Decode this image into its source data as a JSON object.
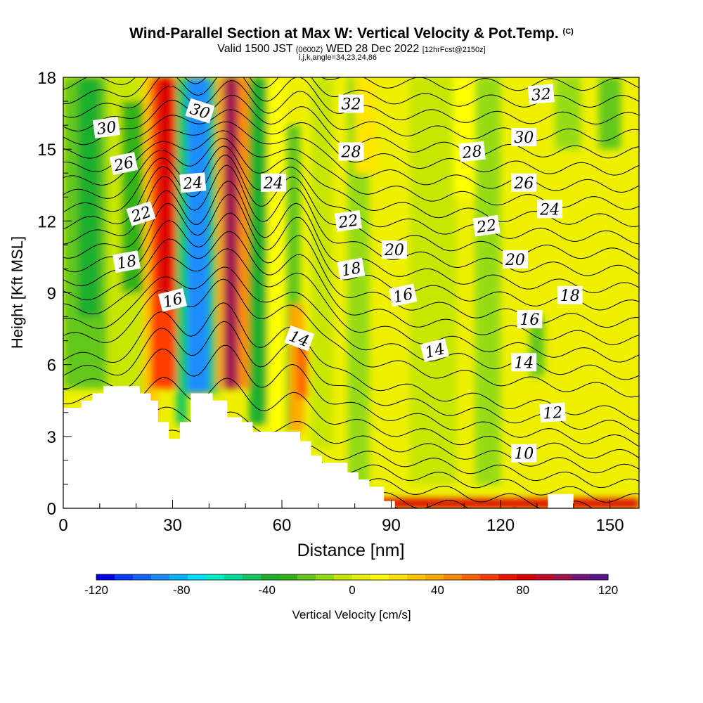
{
  "title": {
    "main": "Wind-Parallel Section at Max W: Vertical Velocity & Pot.Temp.",
    "copyright": "(C)",
    "valid": "Valid 1500 JST",
    "valid_utc": "(0600Z)",
    "date": "WED 28 Dec 2022",
    "forecast": "[12hrFcst@2150z]",
    "meta": "i,j,k,angle=34,23,24,86"
  },
  "chart_data": {
    "type": "heatmap",
    "xlabel": "Distance [nm]",
    "ylabel": "Height [Kft MSL]",
    "xlim": [
      0,
      158
    ],
    "ylim": [
      0,
      18
    ],
    "xticks": [
      0,
      30,
      60,
      90,
      120,
      150
    ],
    "yticks": [
      0,
      3,
      6,
      9,
      12,
      15,
      18
    ],
    "colorbar": {
      "label": "Vertical Velocity [cm/s]",
      "range": [
        -120,
        120
      ],
      "ticks": [
        -120,
        -80,
        -40,
        0,
        40,
        80,
        120
      ],
      "colors": [
        "#0000f0",
        "#0a3cff",
        "#1464ff",
        "#1e8cff",
        "#00b4ff",
        "#00e0ff",
        "#00f0c8",
        "#00dc96",
        "#14c864",
        "#1eaf2d",
        "#32b414",
        "#64c81e",
        "#96dc14",
        "#c8e600",
        "#e6f000",
        "#ffff00",
        "#ffe600",
        "#ffc800",
        "#ffaa00",
        "#ff8c00",
        "#ff6400",
        "#ff3c00",
        "#f01400",
        "#dc0000",
        "#c80a28",
        "#a01450",
        "#78147d",
        "#5a148c"
      ]
    },
    "terrain": [
      [
        0,
        4.2
      ],
      [
        5,
        4.2
      ],
      [
        5,
        4.5
      ],
      [
        8,
        4.5
      ],
      [
        8,
        4.8
      ],
      [
        11,
        4.8
      ],
      [
        11,
        5.1
      ],
      [
        21,
        5.1
      ],
      [
        21,
        4.8
      ],
      [
        24,
        4.8
      ],
      [
        24,
        4.5
      ],
      [
        26,
        4.5
      ],
      [
        26,
        3.6
      ],
      [
        29,
        3.6
      ],
      [
        29,
        2.9
      ],
      [
        32,
        2.9
      ],
      [
        32,
        3.6
      ],
      [
        35,
        3.6
      ],
      [
        35,
        4.8
      ],
      [
        41,
        4.8
      ],
      [
        41,
        4.5
      ],
      [
        45,
        4.5
      ],
      [
        45,
        3.8
      ],
      [
        49,
        3.8
      ],
      [
        49,
        3.6
      ],
      [
        52,
        3.6
      ],
      [
        52,
        3.2
      ],
      [
        65,
        3.2
      ],
      [
        65,
        2.8
      ],
      [
        68,
        2.8
      ],
      [
        68,
        2.2
      ],
      [
        71,
        2.2
      ],
      [
        71,
        1.9
      ],
      [
        78,
        1.9
      ],
      [
        78,
        1.5
      ],
      [
        81,
        1.5
      ],
      [
        81,
        1.2
      ],
      [
        84,
        1.2
      ],
      [
        84,
        0.9
      ],
      [
        88,
        0.9
      ],
      [
        88,
        0.3
      ],
      [
        91,
        0.3
      ],
      [
        91,
        0.0
      ],
      [
        133,
        0.0
      ],
      [
        133,
        0.6
      ],
      [
        140,
        0.6
      ],
      [
        140,
        0.0
      ],
      [
        158,
        0.0
      ]
    ],
    "w_cells": [
      {
        "x0": 0,
        "x1": 12,
        "y0": 5,
        "y1": 18,
        "w": -20
      },
      {
        "x0": 4,
        "x1": 10,
        "y0": 8,
        "y1": 18,
        "w": -36
      },
      {
        "x0": 12,
        "x1": 22,
        "y0": 4,
        "y1": 18,
        "w": -8
      },
      {
        "x0": 16,
        "x1": 22,
        "y0": 9,
        "y1": 17,
        "w": -30
      },
      {
        "x0": 22,
        "x1": 26,
        "y0": 3.5,
        "y1": 18,
        "w": 28
      },
      {
        "x0": 24,
        "x1": 31,
        "y0": 5,
        "y1": 18,
        "w": 65
      },
      {
        "x0": 26,
        "x1": 30,
        "y0": 9,
        "y1": 18,
        "w": 85
      },
      {
        "x0": 31,
        "x1": 34,
        "y0": 3.5,
        "y1": 18,
        "w": -50
      },
      {
        "x0": 34,
        "x1": 40,
        "y0": 4.8,
        "y1": 18,
        "w": -92
      },
      {
        "x0": 40,
        "x1": 43,
        "y0": 4.8,
        "y1": 18,
        "w": -50
      },
      {
        "x0": 42,
        "x1": 44,
        "y0": 5,
        "y1": 18,
        "w": 40
      },
      {
        "x0": 44,
        "x1": 48,
        "y0": 5,
        "y1": 18,
        "w": 95
      },
      {
        "x0": 48,
        "x1": 51,
        "y0": 5,
        "y1": 18,
        "w": 50
      },
      {
        "x0": 51,
        "x1": 56,
        "y0": 3.5,
        "y1": 18,
        "w": -35
      },
      {
        "x0": 56,
        "x1": 61,
        "y0": 3.2,
        "y1": 18,
        "w": 12
      },
      {
        "x0": 61,
        "x1": 65,
        "y0": 3.2,
        "y1": 16,
        "w": -20
      },
      {
        "x0": 62,
        "x1": 66,
        "y0": 3.2,
        "y1": 8.5,
        "w": 35
      },
      {
        "x0": 64,
        "x1": 67,
        "y0": 4.6,
        "y1": 7,
        "w": 58
      },
      {
        "x0": 68,
        "x1": 74,
        "y0": 2.5,
        "y1": 18,
        "w": -8
      },
      {
        "x0": 78,
        "x1": 84,
        "y0": 1,
        "y1": 18,
        "w": -12
      },
      {
        "x0": 80,
        "x1": 86,
        "y0": 14,
        "y1": 18,
        "w": 22
      },
      {
        "x0": 95,
        "x1": 108,
        "y0": 1,
        "y1": 18,
        "w": -6
      },
      {
        "x0": 107,
        "x1": 113,
        "y0": 13,
        "y1": 18,
        "w": 12
      },
      {
        "x0": 113,
        "x1": 120,
        "y0": 1,
        "y1": 18,
        "w": -10
      },
      {
        "x0": 128,
        "x1": 132,
        "y0": 5.5,
        "y1": 8,
        "w": -22
      },
      {
        "x0": 135,
        "x1": 142,
        "y0": 15,
        "y1": 18,
        "w": -15
      },
      {
        "x0": 147,
        "x1": 153,
        "y0": 15,
        "y1": 18,
        "w": -18
      },
      {
        "x0": 0,
        "x1": 158,
        "y0": 0,
        "y1": 0.4,
        "w": 80
      }
    ],
    "theta_contours": [
      {
        "base": 0.5,
        "peak": 0.0,
        "label": null
      },
      {
        "base": 1.0,
        "peak": 0.0,
        "label": null
      },
      {
        "base": 1.5,
        "peak": 0.0,
        "label": null
      },
      {
        "base": 2.0,
        "peak": 0.0,
        "label": null
      },
      {
        "base": 2.5,
        "peak": 0.0,
        "label": "10"
      },
      {
        "base": 3.0,
        "peak": 0.0,
        "label": null
      },
      {
        "base": 3.5,
        "peak": 0.0,
        "label": null
      },
      {
        "base": 4.0,
        "peak": 0.3,
        "label": "12"
      },
      {
        "base": 4.5,
        "peak": 0.8,
        "label": null
      },
      {
        "base": 5.0,
        "peak": 1.3,
        "label": null
      },
      {
        "base": 5.5,
        "peak": 1.6,
        "label": "14"
      },
      {
        "base": 6.0,
        "peak": 1.8,
        "label": null
      },
      {
        "base": 6.8,
        "peak": 2.0,
        "label": null
      },
      {
        "base": 7.4,
        "peak": 2.0,
        "label": "16"
      },
      {
        "base": 8.0,
        "peak": 2.1,
        "label": null
      },
      {
        "base": 8.6,
        "peak": 2.1,
        "label": "18"
      },
      {
        "base": 9.2,
        "peak": 2.1,
        "label": null
      },
      {
        "base": 9.8,
        "peak": 2.1,
        "label": "20"
      },
      {
        "base": 10.4,
        "peak": 2.0,
        "label": null
      },
      {
        "base": 11.0,
        "peak": 2.0,
        "label": "22"
      },
      {
        "base": 11.6,
        "peak": 1.9,
        "label": null
      },
      {
        "base": 12.2,
        "peak": 1.8,
        "label": "24"
      },
      {
        "base": 12.8,
        "peak": 1.7,
        "label": null
      },
      {
        "base": 13.4,
        "peak": 1.6,
        "label": "26"
      },
      {
        "base": 14.0,
        "peak": 1.5,
        "label": null
      },
      {
        "base": 14.6,
        "peak": 1.4,
        "label": "28"
      },
      {
        "base": 15.2,
        "peak": 1.3,
        "label": null
      },
      {
        "base": 15.8,
        "peak": 1.2,
        "label": "30"
      },
      {
        "base": 16.4,
        "peak": 1.1,
        "label": null
      },
      {
        "base": 17.0,
        "peak": 1.0,
        "label": "32"
      },
      {
        "base": 17.6,
        "peak": 0.9,
        "label": null
      }
    ],
    "contour_labels": [
      {
        "text": "30",
        "x": 15,
        "y": 15.9,
        "rot": -8
      },
      {
        "text": "26",
        "x": 21,
        "y": 14.4,
        "rot": -12
      },
      {
        "text": "22",
        "x": 27,
        "y": 12.3,
        "rot": -18
      },
      {
        "text": "18",
        "x": 22,
        "y": 10.3,
        "rot": -10
      },
      {
        "text": "16",
        "x": 38,
        "y": 8.7,
        "rot": -14
      },
      {
        "text": "24",
        "x": 45,
        "y": 13.6,
        "rot": -5
      },
      {
        "text": "30",
        "x": 47.5,
        "y": 16.6,
        "rot": 18
      },
      {
        "text": "24",
        "x": 73,
        "y": 13.6,
        "rot": 0
      },
      {
        "text": "14",
        "x": 82,
        "y": 7.1,
        "rot": 20
      },
      {
        "text": "32",
        "x": 100,
        "y": 16.9,
        "rot": 0
      },
      {
        "text": "28",
        "x": 100,
        "y": 14.9,
        "rot": 0
      },
      {
        "text": "22",
        "x": 99,
        "y": 12.0,
        "rot": -8
      },
      {
        "text": "18",
        "x": 100,
        "y": 10.0,
        "rot": -10
      },
      {
        "text": "20",
        "x": 115,
        "y": 10.8,
        "rot": 0
      },
      {
        "text": "16",
        "x": 118,
        "y": 8.9,
        "rot": -12
      },
      {
        "text": "14",
        "x": 129,
        "y": 6.6,
        "rot": -14
      },
      {
        "text": "28",
        "x": 142,
        "y": 14.9,
        "rot": -6
      },
      {
        "text": "22",
        "x": 147,
        "y": 11.8,
        "rot": -8
      },
      {
        "text": "32",
        "x": 166,
        "y": 17.3,
        "rot": -5
      },
      {
        "text": "30",
        "x": 160,
        "y": 15.5,
        "rot": 0
      },
      {
        "text": "26",
        "x": 160,
        "y": 13.6,
        "rot": 0
      },
      {
        "text": "24",
        "x": 169,
        "y": 12.5,
        "rot": 0
      },
      {
        "text": "20",
        "x": 157,
        "y": 10.4,
        "rot": 0
      },
      {
        "text": "18",
        "x": 176,
        "y": 8.9,
        "rot": 0
      },
      {
        "text": "16",
        "x": 162,
        "y": 7.9,
        "rot": 0
      },
      {
        "text": "14",
        "x": 160,
        "y": 6.1,
        "rot": 0
      },
      {
        "text": "12",
        "x": 170,
        "y": 4.0,
        "rot": -4
      },
      {
        "text": "10",
        "x": 160,
        "y": 2.3,
        "rot": 0
      }
    ]
  }
}
